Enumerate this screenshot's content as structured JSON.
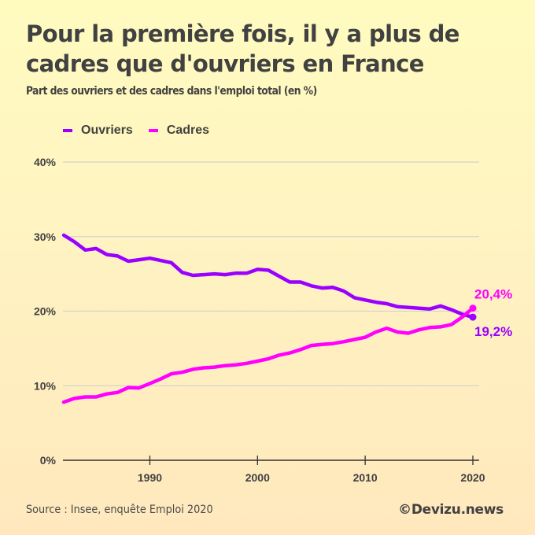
{
  "header": {
    "title": "Pour la première fois, il y a plus de cadres que d'ouvriers en France",
    "subtitle": "Part des ouvriers et des cadres dans l'emploi total (en %)"
  },
  "footer": {
    "source": "Source : Insee, enquête Emploi 2020",
    "brand": "©Devizu.news"
  },
  "chart_data": {
    "type": "line",
    "title": "Pour la première fois, il y a plus de cadres que d'ouvriers en France",
    "subtitle": "Part des ouvriers et des cadres dans l'emploi total (en %)",
    "xlabel": "",
    "ylabel": "",
    "legend_position": "top-left",
    "grid": true,
    "xlim": [
      1982,
      2020
    ],
    "ylim": [
      0,
      40
    ],
    "x_ticks": [
      1990,
      2000,
      2010,
      2020
    ],
    "x_tick_labels": [
      "1990",
      "2000",
      "2010",
      "2020"
    ],
    "y_ticks": [
      0,
      10,
      20,
      30,
      40
    ],
    "y_tick_labels": [
      "0%",
      "10%",
      "20%",
      "30%",
      "40%"
    ],
    "x": [
      1982,
      1983,
      1984,
      1985,
      1986,
      1987,
      1988,
      1989,
      1990,
      1991,
      1992,
      1993,
      1994,
      1995,
      1996,
      1997,
      1998,
      1999,
      2000,
      2001,
      2002,
      2003,
      2004,
      2005,
      2006,
      2007,
      2008,
      2009,
      2010,
      2011,
      2012,
      2013,
      2014,
      2015,
      2016,
      2017,
      2018,
      2019,
      2020
    ],
    "series": [
      {
        "name": "Ouvriers",
        "color": "#9900ff",
        "values": [
          30.2,
          29.3,
          28.2,
          28.4,
          27.6,
          27.4,
          26.7,
          26.9,
          27.1,
          26.8,
          26.5,
          25.2,
          24.8,
          24.9,
          25.0,
          24.9,
          25.1,
          25.1,
          25.6,
          25.5,
          24.7,
          23.9,
          23.9,
          23.4,
          23.1,
          23.2,
          22.7,
          21.8,
          21.5,
          21.2,
          21.0,
          20.6,
          20.5,
          20.4,
          20.3,
          20.7,
          20.2,
          19.6,
          19.2
        ],
        "end_label": "19,2%"
      },
      {
        "name": "Cadres",
        "color": "#ff00ff",
        "values": [
          7.8,
          8.3,
          8.5,
          8.5,
          8.9,
          9.1,
          9.75,
          9.7,
          10.3,
          10.9,
          11.6,
          11.8,
          12.2,
          12.4,
          12.5,
          12.7,
          12.8,
          13.0,
          13.3,
          13.6,
          14.1,
          14.4,
          14.85,
          15.4,
          15.55,
          15.65,
          15.9,
          16.2,
          16.5,
          17.2,
          17.7,
          17.2,
          17.05,
          17.5,
          17.8,
          17.9,
          18.2,
          19.2,
          20.4
        ],
        "end_label": "20,4%"
      }
    ]
  }
}
